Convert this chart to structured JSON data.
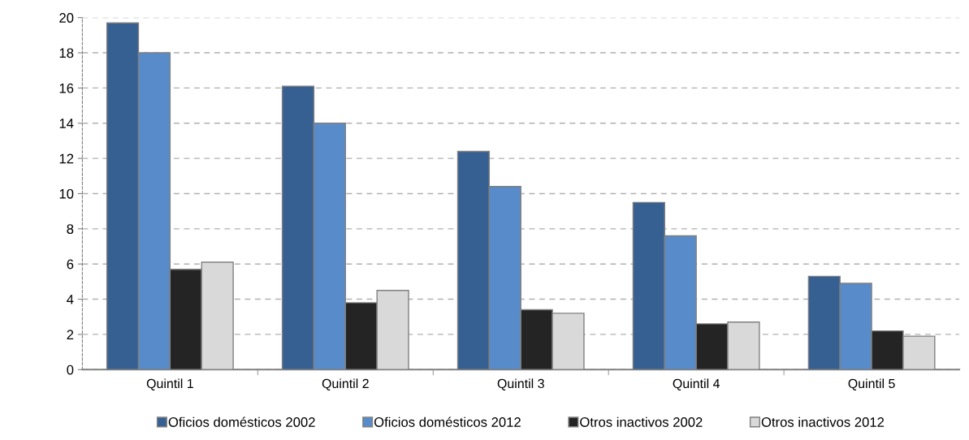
{
  "chart_data": {
    "type": "bar",
    "categories": [
      "Quintil 1",
      "Quintil 2",
      "Quintil 3",
      "Quintil 4",
      "Quintil 5"
    ],
    "series": [
      {
        "name": "Oficios domésticos 2002",
        "color": "#366092",
        "values": [
          19.7,
          16.1,
          12.4,
          9.5,
          5.3
        ]
      },
      {
        "name": "Oficios domésticos 2012",
        "color": "#588bca",
        "values": [
          18.0,
          14.0,
          10.4,
          7.6,
          4.9
        ]
      },
      {
        "name": "Otros inactivos 2002",
        "color": "#242424",
        "values": [
          5.7,
          3.8,
          3.4,
          2.6,
          2.2
        ]
      },
      {
        "name": "Otros inactivos 2012",
        "color": "#d9d9d9",
        "values": [
          6.1,
          4.5,
          3.2,
          2.7,
          1.9
        ]
      }
    ],
    "ylim": [
      0,
      20
    ],
    "yticks": [
      0,
      2,
      4,
      6,
      8,
      10,
      12,
      14,
      16,
      18,
      20
    ],
    "grid": "y",
    "legend": "bottom"
  }
}
